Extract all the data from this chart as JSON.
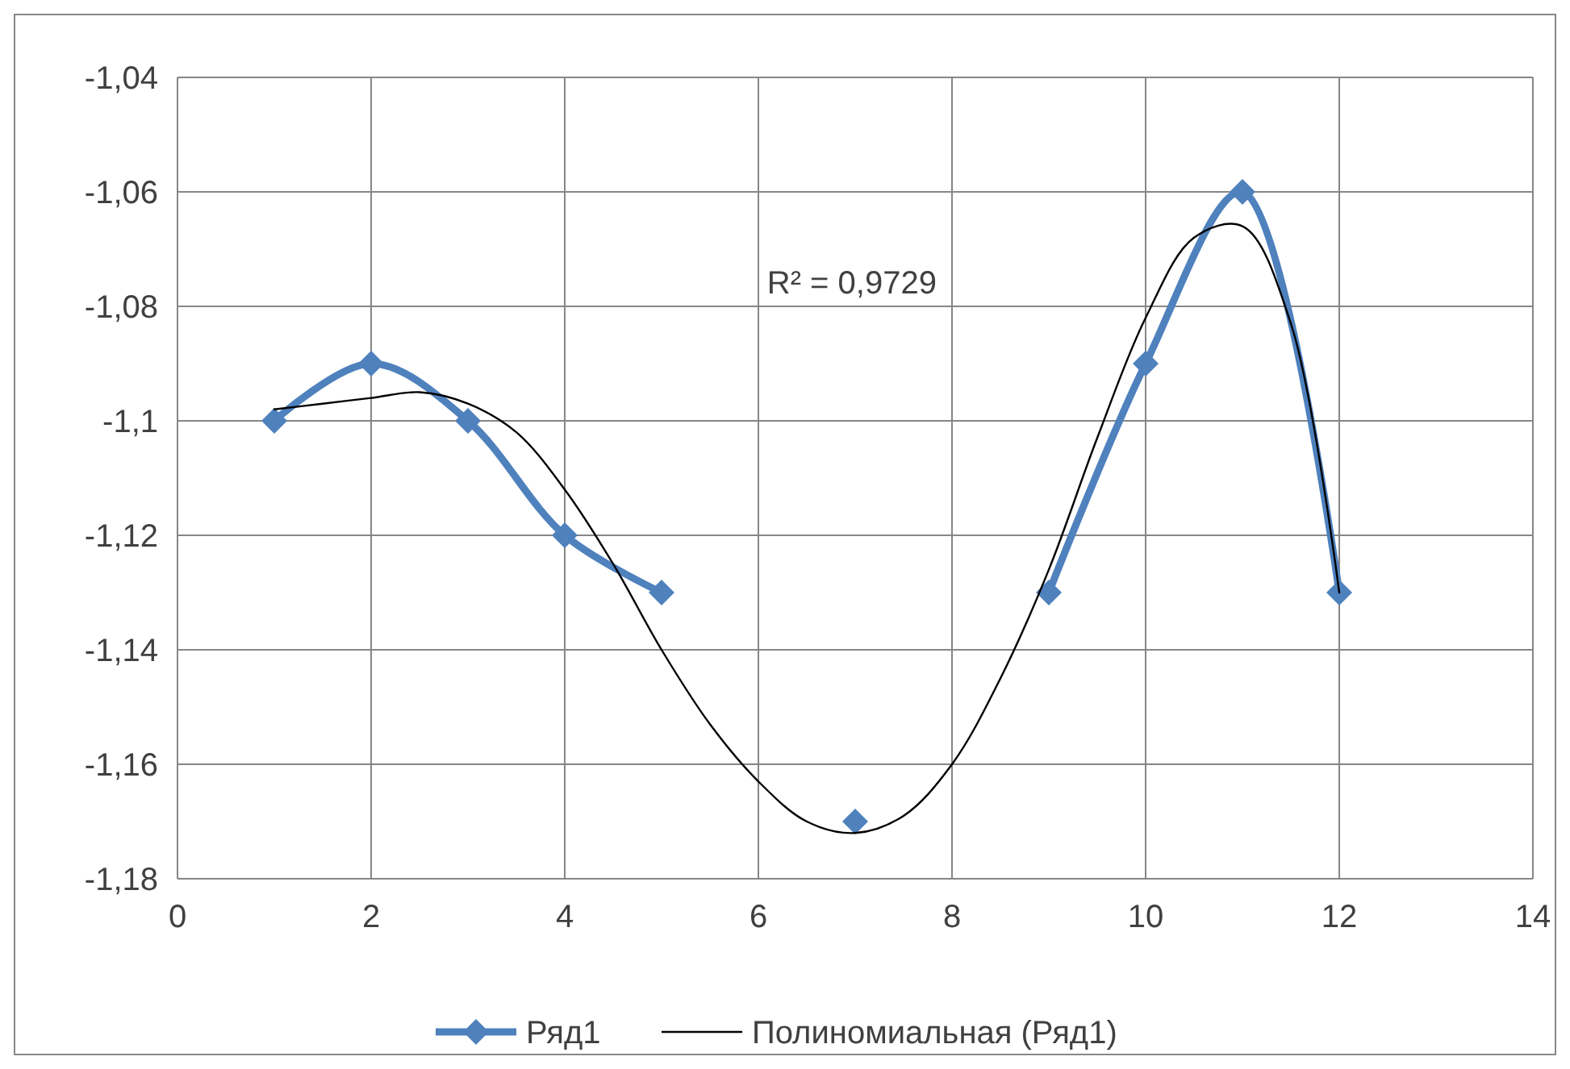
{
  "chart_data": {
    "type": "line",
    "x": [
      1,
      2,
      3,
      4,
      5,
      6,
      7,
      8,
      9,
      10,
      11,
      12
    ],
    "series": [
      {
        "name": "Ряд1",
        "color": "#4f81bd",
        "marker": "diamond",
        "values": [
          -1.1,
          -1.09,
          -1.1,
          -1.12,
          -1.13,
          null,
          -1.17,
          null,
          -1.13,
          -1.09,
          -1.06,
          -1.13
        ]
      },
      {
        "name": "Полиномиальная (Ряд1)",
        "type": "line",
        "color": "#000000",
        "marker": "none",
        "x": [
          1,
          1.5,
          2,
          2.5,
          3,
          3.5,
          4,
          4.5,
          5,
          5.5,
          6,
          6.5,
          7,
          7.5,
          8,
          8.5,
          9,
          9.5,
          10,
          10.5,
          11,
          11.5,
          12
        ],
        "values": [
          -1.098,
          -1.097,
          -1.096,
          -1.095,
          -1.097,
          -1.102,
          -1.112,
          -1.125,
          -1.14,
          -1.153,
          -1.163,
          -1.17,
          -1.172,
          -1.169,
          -1.16,
          -1.145,
          -1.126,
          -1.103,
          -1.082,
          -1.068,
          -1.066,
          -1.083,
          -1.13
        ]
      }
    ],
    "xlim": [
      0,
      14
    ],
    "xticks": [
      0,
      2,
      4,
      6,
      8,
      10,
      12,
      14
    ],
    "ylim": [
      -1.18,
      -1.04
    ],
    "yticks": [
      {
        "value": -1.18,
        "label": "-1,18"
      },
      {
        "value": -1.16,
        "label": "-1,16"
      },
      {
        "value": -1.14,
        "label": "-1,14"
      },
      {
        "value": -1.12,
        "label": "-1,12"
      },
      {
        "value": -1.1,
        "label": "-1,1"
      },
      {
        "value": -1.08,
        "label": "-1,08"
      },
      {
        "value": -1.06,
        "label": "-1,06"
      },
      {
        "value": -1.04,
        "label": "-1,04"
      }
    ],
    "grid": true,
    "legend": "bottom",
    "annotations": [
      "R² = 0,9729"
    ]
  }
}
